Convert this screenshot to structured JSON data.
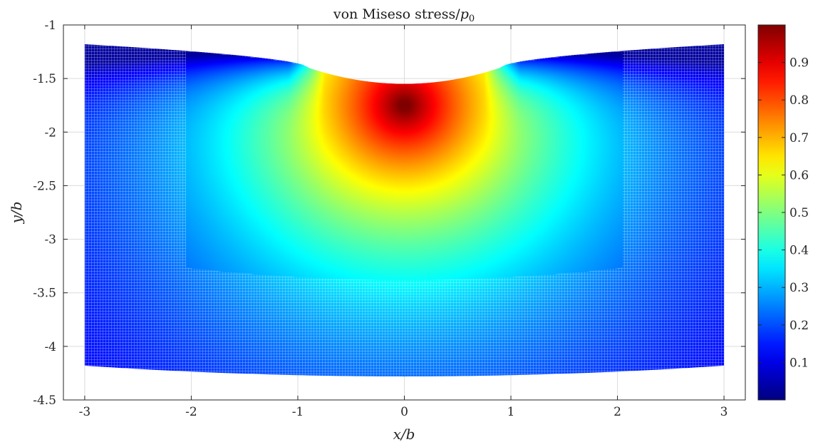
{
  "chart_data": {
    "type": "heatmap",
    "title": {
      "main": "von Miseso stress/",
      "var": "p",
      "sub": "0"
    },
    "xlabel": "x/b",
    "ylabel": "y/b",
    "xlim": [
      -3.2,
      3.2
    ],
    "ylim": [
      -4.5,
      -1
    ],
    "xticks": [
      -3,
      -2,
      -1,
      0,
      1,
      2,
      3
    ],
    "xtick_labels": [
      "-3",
      "-2",
      "-1",
      "0",
      "1",
      "2",
      "3"
    ],
    "yticks": [
      -1,
      -1.5,
      -2,
      -2.5,
      -3,
      -3.5,
      -4,
      -4.5
    ],
    "ytick_labels": [
      "-1",
      "-1.5",
      "-2",
      "-2.5",
      "-3",
      "-3.5",
      "-4",
      "-4.5"
    ],
    "grid": true,
    "colormap": "jet",
    "colorbar": {
      "range": [
        0,
        1
      ],
      "ticks": [
        0.1,
        0.2,
        0.3,
        0.4,
        0.5,
        0.6,
        0.7,
        0.8,
        0.9
      ],
      "tick_labels": [
        "0.1",
        "0.2",
        "0.3",
        "0.4",
        "0.5",
        "0.6",
        "0.7",
        "0.8",
        "0.9"
      ]
    },
    "outer_region": {
      "x_range": [
        -3,
        3
      ],
      "top_corner_y": -1.18,
      "top_center_y": -1.55,
      "bottom_corner_y": -4.18,
      "bottom_center_y": -4.28,
      "dotted": true
    },
    "inner_region": {
      "x_range": [
        -2,
        2
      ],
      "top_corner_y": -1.25,
      "bottom_corner_y": -3.27,
      "bottom_center_y": -3.38,
      "solid": true
    },
    "surface_indentation": {
      "contact_half_width": 0.9,
      "peak_depth_y": -1.55
    },
    "stress_field": {
      "max_value": 0.98,
      "max_location": [
        0,
        -1.75
      ]
    }
  }
}
